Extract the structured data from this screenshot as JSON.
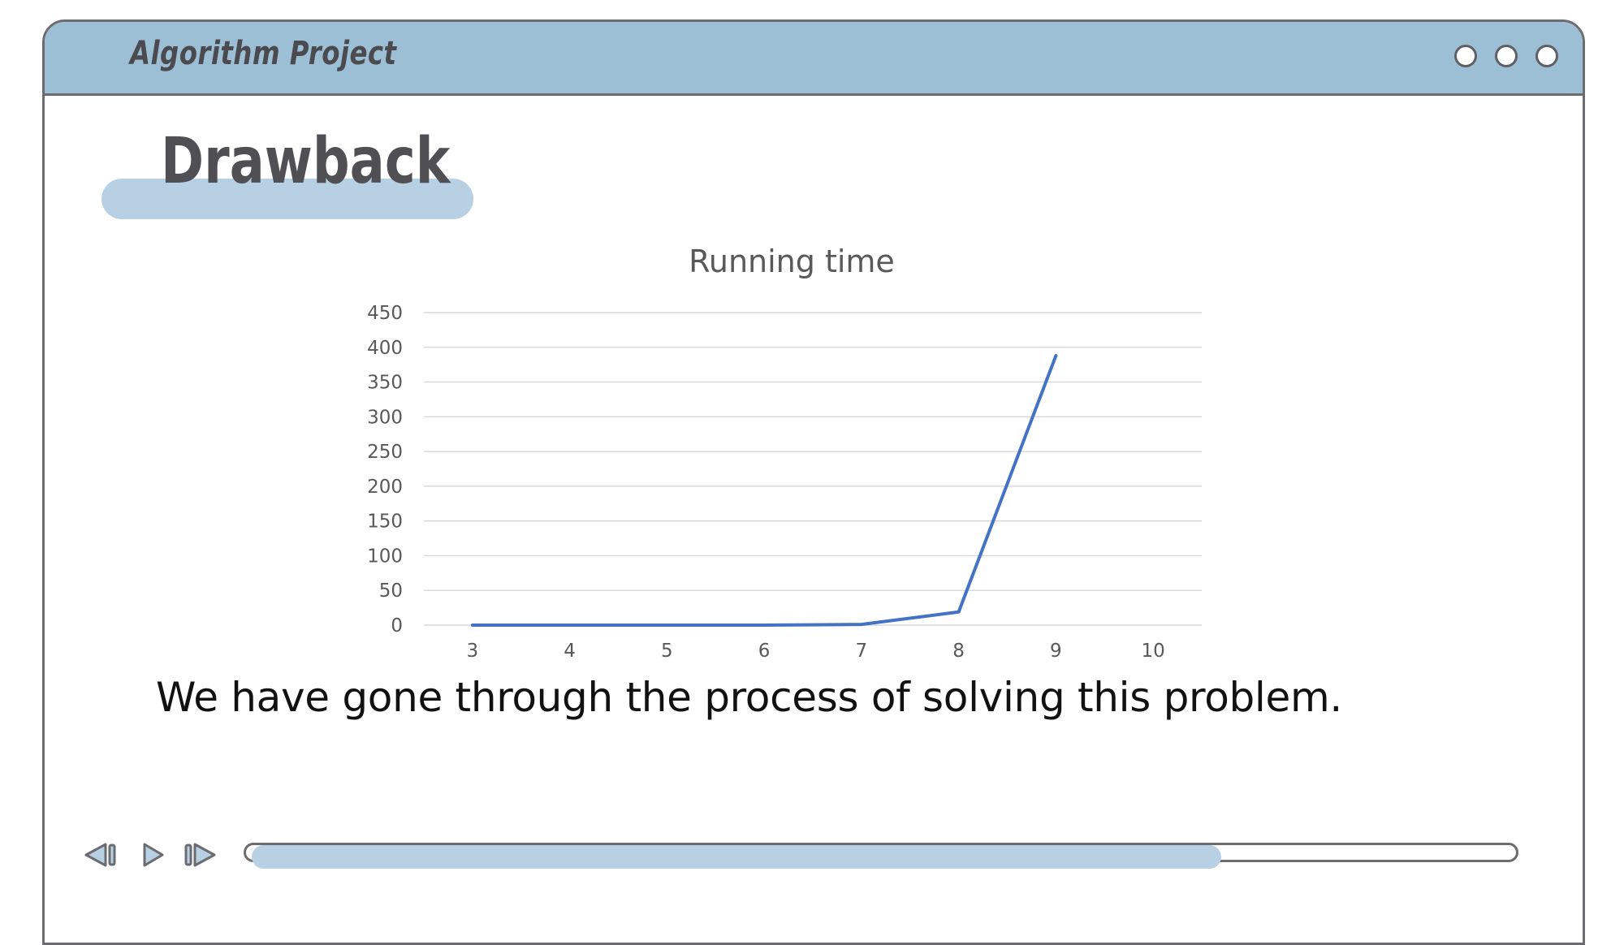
{
  "window": {
    "title": "Algorithm Project",
    "controls": [
      "window-circle-1",
      "window-circle-2",
      "window-circle-3"
    ]
  },
  "slide": {
    "heading": "Drawback",
    "body": "We have gone through the process of solving this problem."
  },
  "player": {
    "prev_icon": "skip-previous-icon",
    "play_icon": "play-icon",
    "next_icon": "skip-next-icon",
    "progress": 0.77
  },
  "colors": {
    "titlebar": "#9dbfd6",
    "accent": "#b8d0e3",
    "series": "#4472c4",
    "border": "#6b6b70"
  },
  "chart_data": {
    "type": "line",
    "title": "Running time",
    "x": [
      3,
      4,
      5,
      6,
      7,
      8,
      9,
      10
    ],
    "series": [
      {
        "values": [
          0,
          0,
          0,
          0,
          1,
          19,
          388,
          null
        ]
      }
    ],
    "yticks": [
      0,
      50,
      100,
      150,
      200,
      250,
      300,
      350,
      400,
      450
    ],
    "ylim": [
      0,
      450
    ],
    "grid": true,
    "legend": "none"
  }
}
